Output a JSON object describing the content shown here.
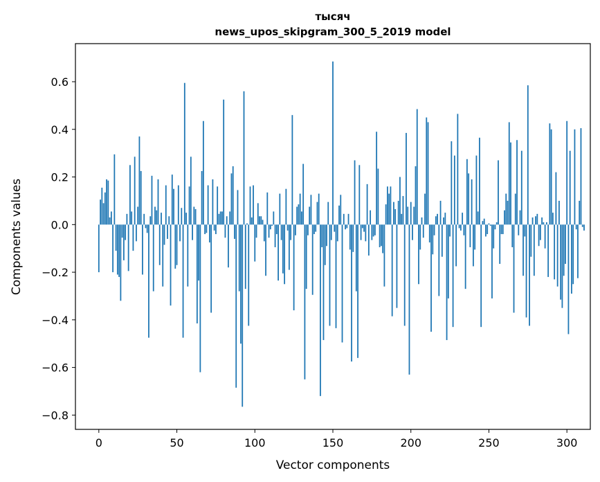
{
  "chart_data": {
    "type": "bar",
    "title_line1": "тысяч",
    "title_line2": "news_upos_skipgram_300_5_2019 model",
    "xlabel": "Vector components",
    "ylabel": "Components values",
    "xlim": [
      -15,
      315
    ],
    "ylim": [
      -0.86,
      0.76
    ],
    "xticks": [
      0,
      50,
      100,
      150,
      200,
      250,
      300
    ],
    "xtick_labels": [
      "0",
      "50",
      "100",
      "150",
      "200",
      "250",
      "300"
    ],
    "yticks": [
      -0.8,
      -0.6,
      -0.4,
      -0.2,
      0.0,
      0.2,
      0.4,
      0.6
    ],
    "ytick_labels": [
      "−0.8",
      "−0.6",
      "−0.4",
      "−0.2",
      "0.0",
      "0.2",
      "0.4",
      "0.6"
    ],
    "bar_color": "#1f77b4",
    "values": [
      -0.2,
      0.105,
      0.155,
      0.09,
      0.135,
      0.19,
      0.185,
      0.03,
      0.055,
      -0.2,
      0.295,
      -0.11,
      -0.21,
      -0.22,
      -0.32,
      -0.055,
      -0.15,
      -0.065,
      0.045,
      -0.195,
      0.25,
      0.055,
      -0.11,
      0.285,
      -0.07,
      0.075,
      0.37,
      0.225,
      -0.21,
      0.045,
      -0.015,
      -0.035,
      -0.475,
      0.035,
      0.205,
      -0.28,
      0.075,
      0.06,
      0.19,
      -0.17,
      0.05,
      -0.26,
      -0.085,
      0.165,
      -0.06,
      0.035,
      -0.34,
      0.21,
      0.15,
      -0.185,
      -0.17,
      0.165,
      -0.07,
      0.07,
      -0.475,
      0.595,
      0.05,
      -0.26,
      0.16,
      0.285,
      -0.065,
      0.075,
      0.065,
      -0.415,
      -0.235,
      -0.62,
      0.225,
      0.435,
      -0.04,
      -0.035,
      0.165,
      -0.075,
      -0.37,
      0.19,
      -0.025,
      -0.04,
      0.16,
      0.045,
      0.055,
      0.055,
      0.525,
      -0.055,
      0.035,
      -0.18,
      0.055,
      0.215,
      0.245,
      -0.06,
      -0.685,
      0.145,
      -0.28,
      -0.5,
      -0.765,
      0.56,
      -0.27,
      0.005,
      -0.425,
      0.16,
      0.03,
      0.165,
      -0.155,
      -0.055,
      0.09,
      0.035,
      0.035,
      0.02,
      -0.07,
      -0.215,
      0.135,
      -0.055,
      -0.02,
      -0.005,
      0.055,
      -0.095,
      -0.04,
      -0.235,
      0.13,
      -0.065,
      -0.205,
      -0.25,
      0.15,
      -0.025,
      -0.19,
      -0.065,
      0.46,
      -0.36,
      -0.045,
      0.075,
      0.085,
      0.13,
      0.055,
      0.255,
      -0.65,
      -0.27,
      -0.045,
      0.075,
      0.125,
      -0.295,
      -0.04,
      -0.03,
      0.095,
      0.13,
      -0.72,
      -0.095,
      -0.485,
      -0.17,
      -0.09,
      0.095,
      -0.425,
      -0.065,
      0.685,
      -0.03,
      -0.435,
      -0.07,
      0.08,
      0.125,
      -0.495,
      0.045,
      -0.02,
      -0.015,
      0.045,
      -0.105,
      -0.575,
      -0.115,
      0.27,
      -0.28,
      -0.56,
      0.25,
      -0.065,
      -0.015,
      -0.03,
      -0.07,
      0.17,
      -0.13,
      0.06,
      -0.065,
      -0.05,
      -0.045,
      0.39,
      0.235,
      -0.095,
      -0.09,
      -0.12,
      -0.26,
      0.085,
      0.16,
      0.13,
      0.16,
      -0.385,
      0.095,
      0.065,
      -0.35,
      0.1,
      0.2,
      0.045,
      0.12,
      -0.425,
      0.385,
      0.075,
      -0.63,
      0.095,
      -0.065,
      0.075,
      0.245,
      0.485,
      -0.25,
      -0.105,
      0.03,
      -0.055,
      0.13,
      0.45,
      0.43,
      -0.075,
      -0.45,
      -0.125,
      -0.045,
      0.035,
      0.045,
      -0.3,
      0.1,
      -0.135,
      0.03,
      0.05,
      -0.485,
      -0.31,
      -0.05,
      0.35,
      -0.43,
      0.29,
      -0.175,
      0.465,
      -0.015,
      -0.025,
      0.05,
      -0.045,
      -0.27,
      0.275,
      0.215,
      -0.095,
      0.19,
      -0.175,
      -0.105,
      0.29,
      0.055,
      0.365,
      -0.43,
      0.015,
      0.025,
      -0.05,
      -0.04,
      0.005,
      -0.005,
      -0.31,
      -0.1,
      -0.02,
      0.01,
      0.27,
      -0.165,
      -0.04,
      -0.04,
      0.06,
      0.13,
      0.1,
      0.43,
      0.345,
      -0.095,
      -0.37,
      0.13,
      0.355,
      -0.045,
      0.06,
      0.31,
      -0.215,
      -0.05,
      -0.39,
      0.585,
      -0.425,
      -0.135,
      0.03,
      -0.215,
      0.035,
      0.045,
      -0.09,
      -0.065,
      0.03,
      0.01,
      -0.1,
      0.01,
      -0.22,
      0.425,
      0.4,
      0.05,
      -0.23,
      0.22,
      -0.26,
      0.1,
      -0.315,
      -0.35,
      -0.215,
      -0.165,
      0.435,
      -0.46,
      0.31,
      -0.29,
      -0.25,
      0.4,
      -0.02,
      -0.225,
      0.1,
      0.405,
      -0.01,
      -0.025
    ]
  }
}
